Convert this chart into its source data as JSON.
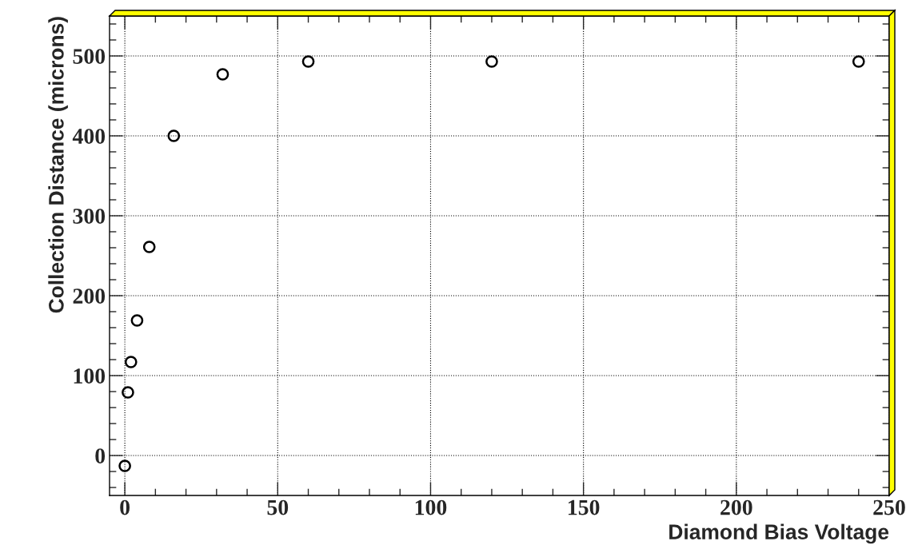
{
  "chart_data": {
    "type": "scatter",
    "xlabel": "Diamond Bias Voltage",
    "ylabel": "Collection Distance (microns)",
    "x": [
      0,
      1,
      2,
      4,
      8,
      16,
      32,
      60,
      120,
      240
    ],
    "series": [
      {
        "color": "#000000",
        "values": [
          -13,
          79,
          117,
          169,
          261,
          400,
          477,
          493,
          493,
          493
        ]
      }
    ],
    "marker": "circle",
    "xlim": [
      -5,
      250
    ],
    "ylim": [
      -50,
      550
    ],
    "xticks": [
      0,
      50,
      100,
      150,
      200,
      250
    ],
    "yticks": [
      0,
      100,
      200,
      300,
      400,
      500
    ],
    "grid": true
  }
}
